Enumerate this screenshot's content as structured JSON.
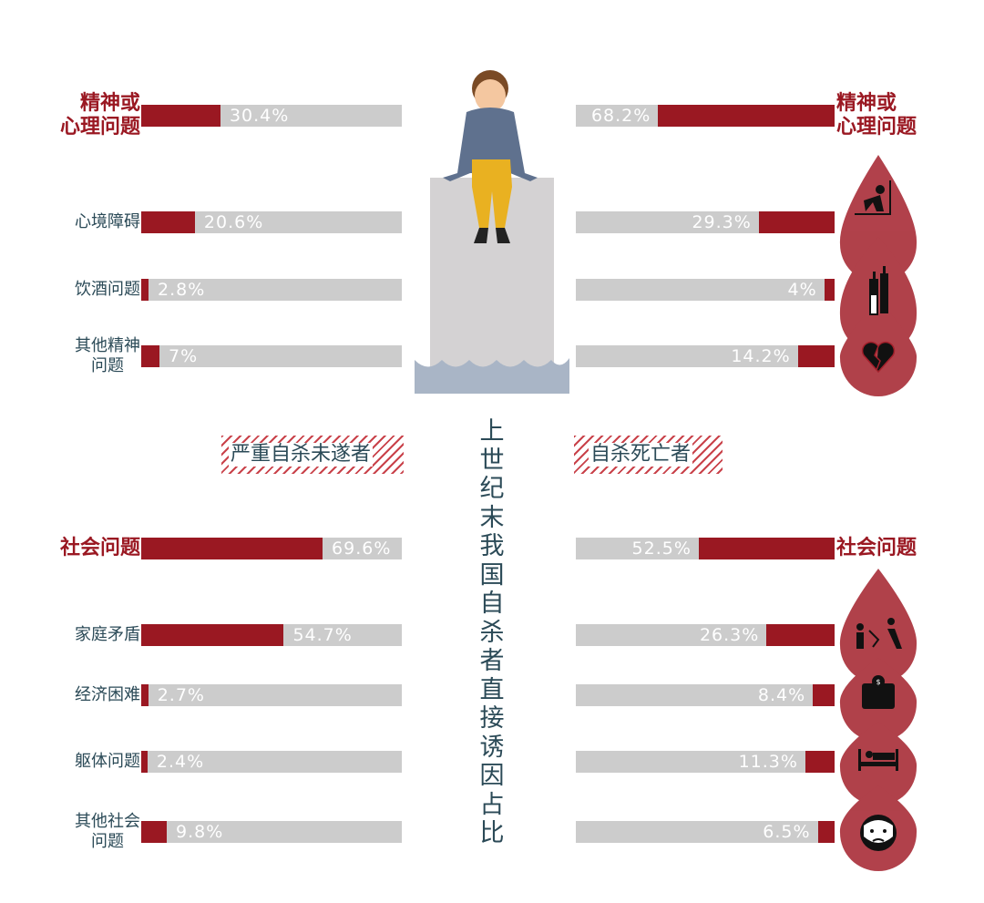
{
  "title": "上世纪末我国自杀者直接诱因占比",
  "colors": {
    "accent": "#9a1822",
    "track": "#cccccc",
    "text": "#2b4a57"
  },
  "legend": {
    "left": "严重自杀未遂者",
    "right": "自杀死亡者"
  },
  "chart_data": {
    "type": "bar",
    "title": "上世纪末我国自杀者直接诱因占比",
    "xlim": [
      0,
      100
    ],
    "series": [
      {
        "name": "严重自杀未遂者",
        "side": "left",
        "categories": [
          "精神或心理问题",
          "心境障碍",
          "饮酒问题",
          "其他精神问题",
          "社会问题",
          "家庭矛盾",
          "经济困难",
          "躯体问题",
          "其他社会问题"
        ],
        "values": [
          30.4,
          20.6,
          2.8,
          7,
          69.6,
          54.7,
          2.7,
          2.4,
          9.8
        ],
        "labels": [
          "30.4%",
          "20.6%",
          "2.8%",
          "7%",
          "69.6%",
          "54.7%",
          "2.7%",
          "2.4%",
          "9.8%"
        ]
      },
      {
        "name": "自杀死亡者",
        "side": "right",
        "categories": [
          "精神或心理问题",
          "心境障碍",
          "饮酒问题",
          "其他精神问题",
          "社会问题",
          "家庭矛盾",
          "经济困难",
          "躯体问题",
          "其他社会问题"
        ],
        "values": [
          68.2,
          29.3,
          4,
          14.2,
          52.5,
          26.3,
          8.4,
          11.3,
          6.5
        ],
        "labels": [
          "68.2%",
          "29.3%",
          "4%",
          "14.2%",
          "52.5%",
          "26.3%",
          "8.4%",
          "11.3%",
          "6.5%"
        ]
      }
    ],
    "left_labels": [
      "精神或\n心理问题",
      "心境障碍",
      "饮酒问题",
      "其他精神\n问题",
      "社会问题",
      "家庭矛盾",
      "经济困难",
      "躯体问题",
      "其他社会\n问题"
    ],
    "right_labels": [
      "精神或\n心理问题",
      "",
      "",
      "",
      "社会问题",
      "",
      "",
      "",
      ""
    ],
    "main_categories": [
      0,
      4
    ],
    "icons": [
      "depressed-person-icon",
      "wine-bottles-icon",
      "broken-heart-icon",
      "family-conflict-icon",
      "wallet-icon",
      "hospital-bed-icon",
      "crying-face-icon"
    ]
  }
}
